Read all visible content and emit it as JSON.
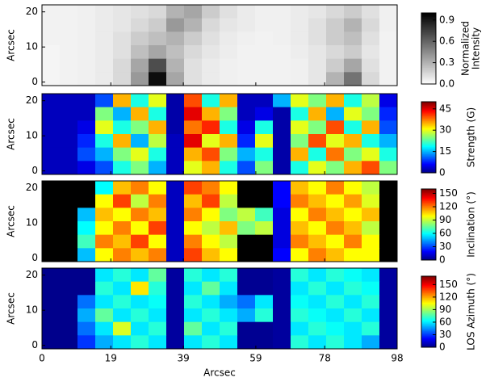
{
  "chart_data": [
    {
      "type": "heatmap",
      "ylabel": "Arcsec",
      "xlim": [
        0,
        98
      ],
      "ylim": [
        -1,
        22
      ],
      "yticks": [
        0,
        10,
        20
      ],
      "colormap": "gray_r",
      "clim": [
        0,
        1
      ],
      "cticks": [
        {
          "value": 0,
          "label": "0.0"
        },
        0.3,
        0.6,
        0.9
      ],
      "clabel": [
        "Normalized",
        "Intensity"
      ],
      "z": [
        [
          0.05,
          0.05,
          0.06,
          0.08,
          0.1,
          0.12,
          0.15,
          0.3,
          0.35,
          0.2,
          0.12,
          0.08,
          0.06,
          0.06,
          0.08,
          0.1,
          0.15,
          0.2,
          0.12,
          0.06
        ],
        [
          0.05,
          0.05,
          0.06,
          0.08,
          0.1,
          0.15,
          0.2,
          0.4,
          0.3,
          0.15,
          0.1,
          0.08,
          0.06,
          0.06,
          0.08,
          0.12,
          0.2,
          0.3,
          0.15,
          0.06
        ],
        [
          0.05,
          0.05,
          0.06,
          0.08,
          0.12,
          0.2,
          0.25,
          0.3,
          0.2,
          0.12,
          0.08,
          0.06,
          0.05,
          0.06,
          0.08,
          0.12,
          0.2,
          0.25,
          0.12,
          0.05
        ],
        [
          0.04,
          0.05,
          0.06,
          0.08,
          0.12,
          0.25,
          0.35,
          0.25,
          0.15,
          0.1,
          0.07,
          0.05,
          0.05,
          0.05,
          0.07,
          0.1,
          0.15,
          0.2,
          0.1,
          0.05
        ],
        [
          0.04,
          0.05,
          0.06,
          0.08,
          0.15,
          0.35,
          0.7,
          0.3,
          0.12,
          0.08,
          0.06,
          0.05,
          0.05,
          0.05,
          0.06,
          0.1,
          0.2,
          0.35,
          0.12,
          0.05
        ],
        [
          0.04,
          0.05,
          0.06,
          0.08,
          0.15,
          0.4,
          0.95,
          0.35,
          0.12,
          0.08,
          0.06,
          0.05,
          0.05,
          0.05,
          0.06,
          0.1,
          0.3,
          0.55,
          0.15,
          0.05
        ]
      ]
    },
    {
      "type": "heatmap",
      "ylabel": "Arcsec",
      "xlim": [
        0,
        98
      ],
      "ylim": [
        -1,
        22
      ],
      "yticks": [
        0,
        10,
        20
      ],
      "colormap": "jet",
      "clim": [
        0,
        50
      ],
      "cticks": [
        0,
        15,
        30,
        45
      ],
      "clabel": [
        "Strength (G)"
      ],
      "z": [
        [
          3,
          3,
          3,
          10,
          35,
          20,
          30,
          2,
          40,
          20,
          35,
          3,
          3,
          15,
          30,
          25,
          35,
          20,
          28,
          5
        ],
        [
          3,
          3,
          3,
          25,
          15,
          35,
          20,
          2,
          45,
          35,
          25,
          3,
          5,
          2,
          20,
          35,
          15,
          30,
          25,
          8
        ],
        [
          3,
          3,
          5,
          30,
          20,
          25,
          35,
          2,
          38,
          42,
          20,
          5,
          20,
          2,
          30,
          25,
          40,
          20,
          35,
          10
        ],
        [
          3,
          3,
          8,
          20,
          35,
          15,
          28,
          3,
          45,
          30,
          35,
          8,
          30,
          2,
          25,
          40,
          30,
          35,
          20,
          15
        ],
        [
          3,
          3,
          10,
          15,
          25,
          30,
          20,
          3,
          35,
          40,
          25,
          15,
          20,
          2,
          35,
          20,
          38,
          25,
          30,
          20
        ],
        [
          3,
          3,
          5,
          10,
          20,
          25,
          15,
          3,
          30,
          35,
          20,
          10,
          25,
          2,
          20,
          30,
          25,
          35,
          40,
          25
        ]
      ]
    },
    {
      "type": "heatmap",
      "ylabel": "Arcsec",
      "xlim": [
        0,
        98
      ],
      "ylim": [
        -1,
        22
      ],
      "yticks": [
        0,
        10,
        20
      ],
      "colormap": "jet",
      "clim": [
        0,
        160
      ],
      "cticks": [
        0,
        30,
        60,
        90,
        120,
        150
      ],
      "clabel": [
        "Inclination (°)"
      ],
      "z": [
        [
          null,
          null,
          null,
          60,
          110,
          120,
          100,
          10,
          130,
          120,
          100,
          null,
          null,
          20,
          110,
          100,
          120,
          100,
          90,
          null
        ],
        [
          null,
          null,
          null,
          100,
          130,
          90,
          120,
          10,
          110,
          130,
          90,
          null,
          null,
          20,
          120,
          110,
          100,
          115,
          95,
          null
        ],
        [
          null,
          null,
          50,
          110,
          100,
          120,
          110,
          10,
          120,
          100,
          80,
          90,
          70,
          15,
          100,
          120,
          110,
          100,
          110,
          null
        ],
        [
          null,
          null,
          60,
          100,
          120,
          100,
          130,
          10,
          100,
          90,
          110,
          80,
          90,
          15,
          110,
          100,
          120,
          110,
          90,
          null
        ],
        [
          null,
          null,
          70,
          120,
          110,
          130,
          100,
          10,
          120,
          100,
          90,
          null,
          null,
          15,
          120,
          110,
          100,
          120,
          100,
          null
        ],
        [
          null,
          null,
          50,
          100,
          120,
          110,
          120,
          10,
          130,
          110,
          100,
          null,
          null,
          20,
          100,
          120,
          110,
          100,
          100,
          null
        ]
      ]
    },
    {
      "type": "heatmap",
      "ylabel": "Arcsec",
      "xlabel": "Arcsec",
      "xlim": [
        0,
        98
      ],
      "ylim": [
        -1,
        22
      ],
      "yticks": [
        0,
        10,
        20
      ],
      "xticks": [
        0,
        19,
        39,
        59,
        78,
        98
      ],
      "colormap": "jet",
      "clim": [
        0,
        170
      ],
      "cticks": [
        0,
        30,
        60,
        90,
        120,
        150
      ],
      "clabel": [
        "LOS Azimuth (°)"
      ],
      "z": [
        [
          2,
          2,
          2,
          60,
          70,
          60,
          80,
          5,
          70,
          60,
          70,
          3,
          3,
          5,
          70,
          60,
          70,
          65,
          60,
          5
        ],
        [
          2,
          2,
          2,
          70,
          60,
          110,
          70,
          5,
          60,
          80,
          60,
          3,
          3,
          5,
          60,
          70,
          60,
          70,
          65,
          5
        ],
        [
          2,
          2,
          40,
          60,
          70,
          60,
          65,
          5,
          70,
          60,
          50,
          40,
          60,
          5,
          65,
          60,
          70,
          60,
          70,
          5
        ],
        [
          2,
          2,
          50,
          80,
          60,
          70,
          60,
          5,
          60,
          70,
          60,
          50,
          70,
          5,
          70,
          65,
          60,
          70,
          60,
          5
        ],
        [
          2,
          2,
          40,
          60,
          100,
          60,
          70,
          5,
          80,
          60,
          70,
          3,
          3,
          5,
          60,
          70,
          65,
          60,
          70,
          5
        ],
        [
          2,
          2,
          30,
          50,
          60,
          70,
          60,
          5,
          60,
          70,
          60,
          3,
          3,
          5,
          70,
          60,
          70,
          60,
          50,
          5
        ]
      ]
    }
  ]
}
